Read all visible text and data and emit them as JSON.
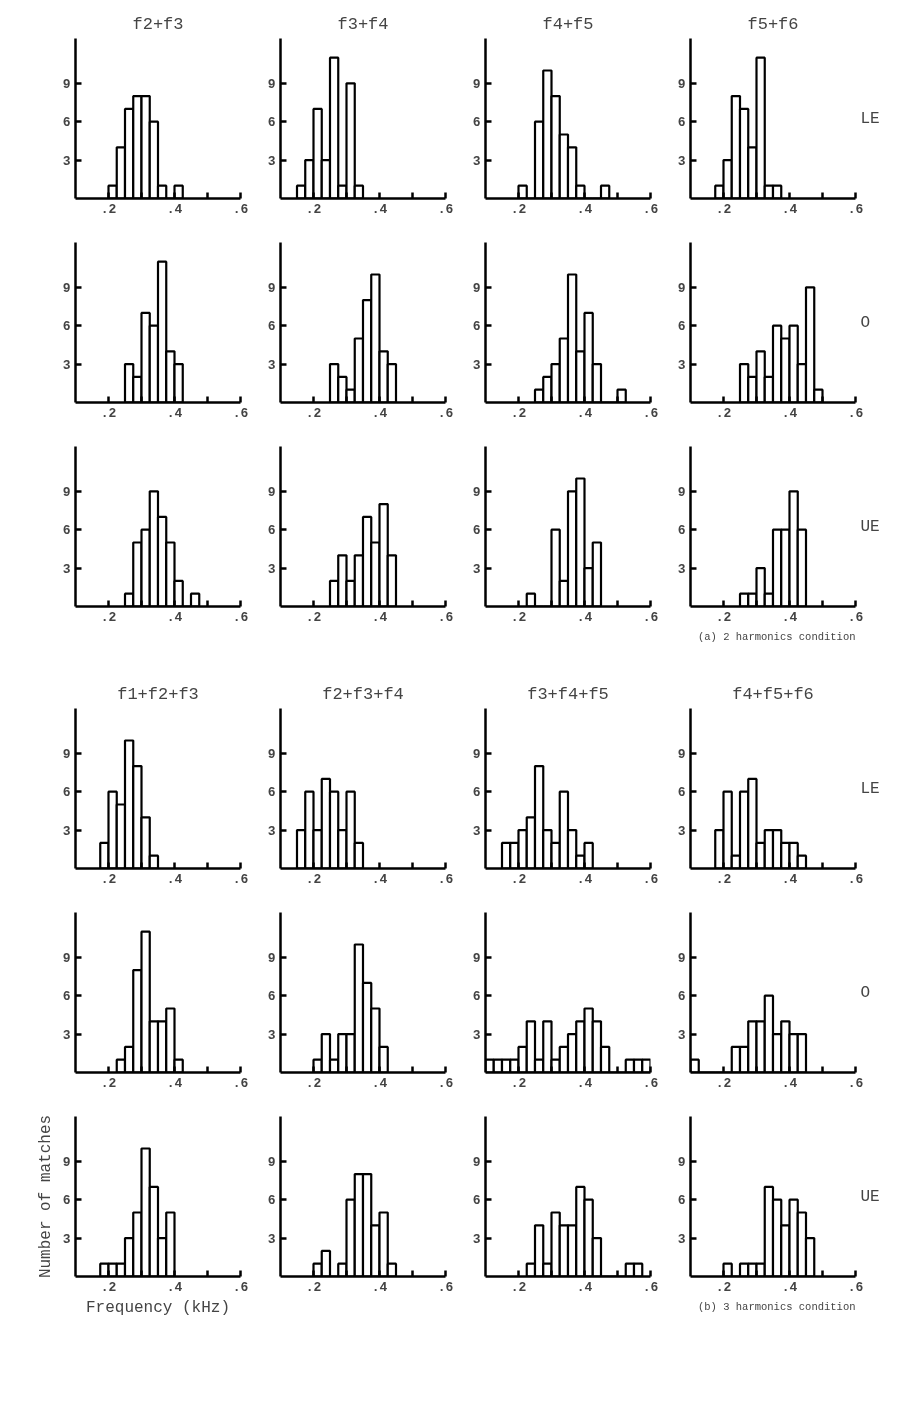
{
  "chart_data": [
    {
      "type": "histogram",
      "title": "f2+f3",
      "bins": [
        0.2,
        0.225,
        0.25,
        0.275,
        0.3,
        0.325,
        0.35,
        0.375,
        0.4,
        0.425
      ],
      "values": [
        1,
        4,
        7,
        8,
        8,
        6,
        1,
        0,
        1
      ],
      "color": "#000000",
      "xlim": [
        0.1,
        0.6
      ],
      "ylim": [
        0,
        12.5
      ],
      "xticks": [
        {
          "value": 0.2,
          "label": ".2"
        },
        {
          "value": 0.3,
          "label": null
        },
        {
          "value": 0.4,
          "label": ".4"
        },
        {
          "value": 0.5,
          "label": null
        },
        {
          "value": 0.6,
          "label": ".6"
        }
      ],
      "yticks": [
        3,
        6,
        9
      ]
    },
    {
      "type": "histogram",
      "title": "f3+f4",
      "bins": [
        0.15,
        0.175,
        0.2,
        0.225,
        0.25,
        0.275,
        0.3,
        0.325,
        0.35
      ],
      "values": [
        1,
        3,
        7,
        3,
        11,
        1,
        9,
        1
      ],
      "color": "#000000",
      "xlim": [
        0.1,
        0.6
      ],
      "ylim": [
        0,
        12.5
      ],
      "xticks": [
        {
          "value": 0.2,
          "label": ".2"
        },
        {
          "value": 0.3,
          "label": null
        },
        {
          "value": 0.4,
          "label": ".4"
        },
        {
          "value": 0.5,
          "label": null
        },
        {
          "value": 0.6,
          "label": ".6"
        }
      ],
      "yticks": [
        3,
        6,
        9
      ]
    },
    {
      "type": "histogram",
      "title": "f4+f5",
      "bins": [
        0.2,
        0.225,
        0.25,
        0.275,
        0.3,
        0.325,
        0.35,
        0.375,
        0.4,
        0.425,
        0.45,
        0.475
      ],
      "values": [
        1,
        0,
        6,
        10,
        8,
        5,
        4,
        1,
        0,
        0,
        1
      ],
      "color": "#000000",
      "xlim": [
        0.1,
        0.6
      ],
      "ylim": [
        0,
        12.5
      ],
      "xticks": [
        {
          "value": 0.2,
          "label": ".2"
        },
        {
          "value": 0.3,
          "label": null
        },
        {
          "value": 0.4,
          "label": ".4"
        },
        {
          "value": 0.5,
          "label": null
        },
        {
          "value": 0.6,
          "label": ".6"
        }
      ],
      "yticks": [
        3,
        6,
        9
      ]
    },
    {
      "type": "histogram",
      "title": "f5+f6",
      "y2label": "LE",
      "bins": [
        0.175,
        0.2,
        0.225,
        0.25,
        0.275,
        0.3,
        0.325,
        0.35,
        0.375
      ],
      "values": [
        1,
        3,
        8,
        7,
        4,
        11,
        1,
        1
      ],
      "color": "#000000",
      "xlim": [
        0.1,
        0.6
      ],
      "ylim": [
        0,
        12.5
      ],
      "xticks": [
        {
          "value": 0.2,
          "label": ".2"
        },
        {
          "value": 0.3,
          "label": null
        },
        {
          "value": 0.4,
          "label": ".4"
        },
        {
          "value": 0.5,
          "label": null
        },
        {
          "value": 0.6,
          "label": ".6"
        }
      ],
      "yticks": [
        3,
        6,
        9
      ]
    },
    {
      "type": "histogram",
      "bins": [
        0.25,
        0.275,
        0.3,
        0.325,
        0.35,
        0.375,
        0.4,
        0.425
      ],
      "values": [
        3,
        2,
        7,
        6,
        11,
        4,
        3
      ],
      "color": "#000000",
      "xlim": [
        0.1,
        0.6
      ],
      "ylim": [
        0,
        12.5
      ],
      "xticks": [
        {
          "value": 0.2,
          "label": ".2"
        },
        {
          "value": 0.3,
          "label": null
        },
        {
          "value": 0.4,
          "label": ".4"
        },
        {
          "value": 0.5,
          "label": null
        },
        {
          "value": 0.6,
          "label": ".6"
        }
      ],
      "yticks": [
        3,
        6,
        9
      ]
    },
    {
      "type": "histogram",
      "bins": [
        0.25,
        0.275,
        0.3,
        0.325,
        0.35,
        0.375,
        0.4,
        0.425,
        0.45
      ],
      "values": [
        3,
        2,
        1,
        5,
        8,
        10,
        4,
        3
      ],
      "color": "#000000",
      "xlim": [
        0.1,
        0.6
      ],
      "ylim": [
        0,
        12.5
      ],
      "xticks": [
        {
          "value": 0.2,
          "label": ".2"
        },
        {
          "value": 0.3,
          "label": null
        },
        {
          "value": 0.4,
          "label": ".4"
        },
        {
          "value": 0.5,
          "label": null
        },
        {
          "value": 0.6,
          "label": ".6"
        }
      ],
      "yticks": [
        3,
        6,
        9
      ]
    },
    {
      "type": "histogram",
      "bins": [
        0.25,
        0.275,
        0.3,
        0.325,
        0.35,
        0.375,
        0.4,
        0.425,
        0.45,
        0.475,
        0.5,
        0.525
      ],
      "values": [
        1,
        2,
        3,
        5,
        10,
        4,
        7,
        3,
        0,
        0,
        1
      ],
      "color": "#000000",
      "xlim": [
        0.1,
        0.6
      ],
      "ylim": [
        0,
        12.5
      ],
      "xticks": [
        {
          "value": 0.2,
          "label": ".2"
        },
        {
          "value": 0.3,
          "label": null
        },
        {
          "value": 0.4,
          "label": ".4"
        },
        {
          "value": 0.5,
          "label": null
        },
        {
          "value": 0.6,
          "label": ".6"
        }
      ],
      "yticks": [
        3,
        6,
        9
      ]
    },
    {
      "type": "histogram",
      "y2label": "O",
      "bins": [
        0.25,
        0.275,
        0.3,
        0.325,
        0.35,
        0.375,
        0.4,
        0.425,
        0.45,
        0.475,
        0.5
      ],
      "values": [
        3,
        2,
        4,
        2,
        6,
        5,
        6,
        3,
        9,
        1
      ],
      "color": "#000000",
      "xlim": [
        0.1,
        0.6
      ],
      "ylim": [
        0,
        12.5
      ],
      "xticks": [
        {
          "value": 0.2,
          "label": ".2"
        },
        {
          "value": 0.3,
          "label": null
        },
        {
          "value": 0.4,
          "label": ".4"
        },
        {
          "value": 0.5,
          "label": null
        },
        {
          "value": 0.6,
          "label": ".6"
        }
      ],
      "yticks": [
        3,
        6,
        9
      ]
    },
    {
      "type": "histogram",
      "bins": [
        0.25,
        0.275,
        0.3,
        0.325,
        0.35,
        0.375,
        0.4,
        0.425,
        0.45,
        0.475
      ],
      "values": [
        1,
        5,
        6,
        9,
        7,
        5,
        2,
        0,
        1
      ],
      "color": "#000000",
      "xlim": [
        0.1,
        0.6
      ],
      "ylim": [
        0,
        12.5
      ],
      "xticks": [
        {
          "value": 0.2,
          "label": ".2"
        },
        {
          "value": 0.3,
          "label": null
        },
        {
          "value": 0.4,
          "label": ".4"
        },
        {
          "value": 0.5,
          "label": null
        },
        {
          "value": 0.6,
          "label": ".6"
        }
      ],
      "yticks": [
        3,
        6,
        9
      ]
    },
    {
      "type": "histogram",
      "bins": [
        0.25,
        0.275,
        0.3,
        0.325,
        0.35,
        0.375,
        0.4,
        0.425,
        0.45
      ],
      "values": [
        2,
        4,
        2,
        4,
        7,
        5,
        8,
        4
      ],
      "color": "#000000",
      "xlim": [
        0.1,
        0.6
      ],
      "ylim": [
        0,
        12.5
      ],
      "xticks": [
        {
          "value": 0.2,
          "label": ".2"
        },
        {
          "value": 0.3,
          "label": null
        },
        {
          "value": 0.4,
          "label": ".4"
        },
        {
          "value": 0.5,
          "label": null
        },
        {
          "value": 0.6,
          "label": ".6"
        }
      ],
      "yticks": [
        3,
        6,
        9
      ]
    },
    {
      "type": "histogram",
      "bins": [
        0.225,
        0.25,
        0.275,
        0.3,
        0.325,
        0.35,
        0.375,
        0.4,
        0.425,
        0.45
      ],
      "values": [
        1,
        0,
        0,
        6,
        2,
        9,
        10,
        3,
        5
      ],
      "color": "#000000",
      "xlim": [
        0.1,
        0.6
      ],
      "ylim": [
        0,
        12.5
      ],
      "xticks": [
        {
          "value": 0.2,
          "label": ".2"
        },
        {
          "value": 0.3,
          "label": null
        },
        {
          "value": 0.4,
          "label": ".4"
        },
        {
          "value": 0.5,
          "label": null
        },
        {
          "value": 0.6,
          "label": ".6"
        }
      ],
      "yticks": [
        3,
        6,
        9
      ]
    },
    {
      "type": "histogram",
      "y2label": "UE",
      "annotations": [
        "(a) 2 harmonics condition"
      ],
      "bins": [
        0.25,
        0.275,
        0.3,
        0.325,
        0.35,
        0.375,
        0.4,
        0.425,
        0.45
      ],
      "values": [
        1,
        1,
        3,
        1,
        6,
        6,
        9,
        6
      ],
      "color": "#000000",
      "xlim": [
        0.1,
        0.6
      ],
      "ylim": [
        0,
        12.5
      ],
      "xticks": [
        {
          "value": 0.2,
          "label": ".2"
        },
        {
          "value": 0.3,
          "label": null
        },
        {
          "value": 0.4,
          "label": ".4"
        },
        {
          "value": 0.5,
          "label": null
        },
        {
          "value": 0.6,
          "label": ".6"
        }
      ],
      "yticks": [
        3,
        6,
        9
      ]
    },
    {
      "type": "histogram",
      "title": "f1+f2+f3",
      "bins": [
        0.175,
        0.2,
        0.225,
        0.25,
        0.275,
        0.3,
        0.325,
        0.35
      ],
      "values": [
        2,
        6,
        5,
        10,
        8,
        4,
        1
      ],
      "color": "#000000",
      "xlim": [
        0.1,
        0.6
      ],
      "ylim": [
        0,
        12.5
      ],
      "xticks": [
        {
          "value": 0.2,
          "label": ".2"
        },
        {
          "value": 0.3,
          "label": null
        },
        {
          "value": 0.4,
          "label": ".4"
        },
        {
          "value": 0.5,
          "label": null
        },
        {
          "value": 0.6,
          "label": ".6"
        }
      ],
      "yticks": [
        3,
        6,
        9
      ]
    },
    {
      "type": "histogram",
      "title": "f2+f3+f4",
      "bins": [
        0.15,
        0.175,
        0.2,
        0.225,
        0.25,
        0.275,
        0.3,
        0.325,
        0.35
      ],
      "values": [
        3,
        6,
        3,
        7,
        6,
        3,
        6,
        2
      ],
      "color": "#000000",
      "xlim": [
        0.1,
        0.6
      ],
      "ylim": [
        0,
        12.5
      ],
      "xticks": [
        {
          "value": 0.2,
          "label": ".2"
        },
        {
          "value": 0.3,
          "label": null
        },
        {
          "value": 0.4,
          "label": ".4"
        },
        {
          "value": 0.5,
          "label": null
        },
        {
          "value": 0.6,
          "label": ".6"
        }
      ],
      "yticks": [
        3,
        6,
        9
      ]
    },
    {
      "type": "histogram",
      "title": "f3+f4+f5",
      "bins": [
        0.15,
        0.175,
        0.2,
        0.225,
        0.25,
        0.275,
        0.3,
        0.325,
        0.35,
        0.375,
        0.4,
        0.425
      ],
      "values": [
        2,
        2,
        3,
        4,
        8,
        3,
        2,
        6,
        3,
        1,
        2
      ],
      "color": "#000000",
      "xlim": [
        0.1,
        0.6
      ],
      "ylim": [
        0,
        12.5
      ],
      "xticks": [
        {
          "value": 0.2,
          "label": ".2"
        },
        {
          "value": 0.3,
          "label": null
        },
        {
          "value": 0.4,
          "label": ".4"
        },
        {
          "value": 0.5,
          "label": null
        },
        {
          "value": 0.6,
          "label": ".6"
        }
      ],
      "yticks": [
        3,
        6,
        9
      ]
    },
    {
      "type": "histogram",
      "title": "f4+f5+f6",
      "y2label": "LE",
      "bins": [
        0.175,
        0.2,
        0.225,
        0.25,
        0.275,
        0.3,
        0.325,
        0.35,
        0.375,
        0.4,
        0.425,
        0.45
      ],
      "values": [
        3,
        6,
        1,
        6,
        7,
        2,
        3,
        3,
        2,
        2,
        1
      ],
      "color": "#000000",
      "xlim": [
        0.1,
        0.6
      ],
      "ylim": [
        0,
        12.5
      ],
      "xticks": [
        {
          "value": 0.2,
          "label": ".2"
        },
        {
          "value": 0.3,
          "label": null
        },
        {
          "value": 0.4,
          "label": ".4"
        },
        {
          "value": 0.5,
          "label": null
        },
        {
          "value": 0.6,
          "label": ".6"
        }
      ],
      "yticks": [
        3,
        6,
        9
      ]
    },
    {
      "type": "histogram",
      "bins": [
        0.225,
        0.25,
        0.275,
        0.3,
        0.325,
        0.35,
        0.375,
        0.4,
        0.425
      ],
      "values": [
        1,
        2,
        8,
        11,
        4,
        4,
        5,
        1
      ],
      "color": "#000000",
      "xlim": [
        0.1,
        0.6
      ],
      "ylim": [
        0,
        12.5
      ],
      "xticks": [
        {
          "value": 0.2,
          "label": ".2"
        },
        {
          "value": 0.3,
          "label": null
        },
        {
          "value": 0.4,
          "label": ".4"
        },
        {
          "value": 0.5,
          "label": null
        },
        {
          "value": 0.6,
          "label": ".6"
        }
      ],
      "yticks": [
        3,
        6,
        9
      ]
    },
    {
      "type": "histogram",
      "bins": [
        0.2,
        0.225,
        0.25,
        0.275,
        0.3,
        0.325,
        0.35,
        0.375,
        0.4,
        0.425
      ],
      "values": [
        1,
        3,
        1,
        3,
        3,
        10,
        7,
        5,
        2
      ],
      "color": "#000000",
      "xlim": [
        0.1,
        0.6
      ],
      "ylim": [
        0,
        12.5
      ],
      "xticks": [
        {
          "value": 0.2,
          "label": ".2"
        },
        {
          "value": 0.3,
          "label": null
        },
        {
          "value": 0.4,
          "label": ".4"
        },
        {
          "value": 0.5,
          "label": null
        },
        {
          "value": 0.6,
          "label": ".6"
        }
      ],
      "yticks": [
        3,
        6,
        9
      ]
    },
    {
      "type": "histogram",
      "bins": [
        0.1,
        0.125,
        0.15,
        0.175,
        0.2,
        0.225,
        0.25,
        0.275,
        0.3,
        0.325,
        0.35,
        0.375,
        0.4,
        0.425,
        0.45,
        0.475,
        0.5,
        0.525,
        0.55,
        0.575,
        0.6
      ],
      "values": [
        1,
        1,
        1,
        1,
        2,
        4,
        1,
        4,
        1,
        2,
        3,
        4,
        5,
        4,
        2,
        0,
        0,
        1,
        1,
        1
      ],
      "color": "#000000",
      "xlim": [
        0.1,
        0.6
      ],
      "ylim": [
        0,
        12.5
      ],
      "xticks": [
        {
          "value": 0.2,
          "label": ".2"
        },
        {
          "value": 0.3,
          "label": null
        },
        {
          "value": 0.4,
          "label": ".4"
        },
        {
          "value": 0.5,
          "label": null
        },
        {
          "value": 0.6,
          "label": ".6"
        }
      ],
      "yticks": [
        3,
        6,
        9
      ]
    },
    {
      "type": "histogram",
      "y2label": "O",
      "bins": [
        0.1,
        0.125,
        0.15,
        0.175,
        0.2,
        0.225,
        0.25,
        0.275,
        0.3,
        0.325,
        0.35,
        0.375,
        0.4,
        0.425,
        0.45
      ],
      "values": [
        1,
        0,
        0,
        0,
        0,
        2,
        2,
        4,
        4,
        6,
        3,
        4,
        3,
        3
      ],
      "color": "#000000",
      "xlim": [
        0.1,
        0.6
      ],
      "ylim": [
        0,
        12.5
      ],
      "xticks": [
        {
          "value": 0.2,
          "label": ".2"
        },
        {
          "value": 0.3,
          "label": null
        },
        {
          "value": 0.4,
          "label": ".4"
        },
        {
          "value": 0.5,
          "label": null
        },
        {
          "value": 0.6,
          "label": ".6"
        }
      ],
      "yticks": [
        3,
        6,
        9
      ]
    },
    {
      "type": "histogram",
      "xlabel": "Frequency (kHz)",
      "ylabel": "Number of matches",
      "bins": [
        0.175,
        0.2,
        0.225,
        0.25,
        0.275,
        0.3,
        0.325,
        0.35,
        0.375,
        0.4
      ],
      "values": [
        1,
        1,
        1,
        3,
        5,
        10,
        7,
        3,
        5
      ],
      "color": "#000000",
      "xlim": [
        0.1,
        0.6
      ],
      "ylim": [
        0,
        12.5
      ],
      "xticks": [
        {
          "value": 0.2,
          "label": ".2"
        },
        {
          "value": 0.3,
          "label": null
        },
        {
          "value": 0.4,
          "label": ".4"
        },
        {
          "value": 0.5,
          "label": null
        },
        {
          "value": 0.6,
          "label": ".6"
        }
      ],
      "yticks": [
        3,
        6,
        9
      ]
    },
    {
      "type": "histogram",
      "bins": [
        0.2,
        0.225,
        0.25,
        0.275,
        0.3,
        0.325,
        0.35,
        0.375,
        0.4,
        0.425,
        0.45
      ],
      "values": [
        1,
        2,
        0,
        1,
        6,
        8,
        8,
        4,
        5,
        1
      ],
      "color": "#000000",
      "xlim": [
        0.1,
        0.6
      ],
      "ylim": [
        0,
        12.5
      ],
      "xticks": [
        {
          "value": 0.2,
          "label": ".2"
        },
        {
          "value": 0.3,
          "label": null
        },
        {
          "value": 0.4,
          "label": ".4"
        },
        {
          "value": 0.5,
          "label": null
        },
        {
          "value": 0.6,
          "label": ".6"
        }
      ],
      "yticks": [
        3,
        6,
        9
      ]
    },
    {
      "type": "histogram",
      "bins": [
        0.225,
        0.25,
        0.275,
        0.3,
        0.325,
        0.35,
        0.375,
        0.4,
        0.425,
        0.45,
        0.475,
        0.5,
        0.525,
        0.55,
        0.575
      ],
      "values": [
        1,
        4,
        1,
        5,
        4,
        4,
        7,
        6,
        3,
        0,
        0,
        0,
        1,
        1
      ],
      "color": "#000000",
      "xlim": [
        0.1,
        0.6
      ],
      "ylim": [
        0,
        12.5
      ],
      "xticks": [
        {
          "value": 0.2,
          "label": ".2"
        },
        {
          "value": 0.3,
          "label": null
        },
        {
          "value": 0.4,
          "label": ".4"
        },
        {
          "value": 0.5,
          "label": null
        },
        {
          "value": 0.6,
          "label": ".6"
        }
      ],
      "yticks": [
        3,
        6,
        9
      ]
    },
    {
      "type": "histogram",
      "y2label": "UE",
      "annotations": [
        "(b) 3 harmonics condition"
      ],
      "bins": [
        0.2,
        0.225,
        0.25,
        0.275,
        0.3,
        0.325,
        0.35,
        0.375,
        0.4,
        0.425,
        0.45,
        0.475
      ],
      "values": [
        1,
        0,
        1,
        1,
        1,
        7,
        6,
        4,
        6,
        5,
        3
      ],
      "color": "#000000",
      "xlim": [
        0.1,
        0.6
      ],
      "ylim": [
        0,
        12.5
      ],
      "xticks": [
        {
          "value": 0.2,
          "label": ".2"
        },
        {
          "value": 0.3,
          "label": null
        },
        {
          "value": 0.4,
          "label": ".4"
        },
        {
          "value": 0.5,
          "label": null
        },
        {
          "value": 0.6,
          "label": ".6"
        }
      ],
      "yticks": [
        3,
        6,
        9
      ]
    }
  ]
}
